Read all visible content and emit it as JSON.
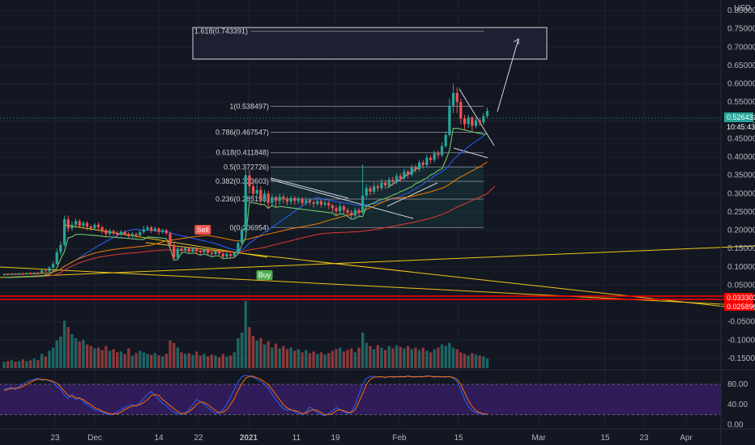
{
  "colors": {
    "background": "#131722",
    "grid": "#1e222d",
    "up": "#26a69a",
    "down": "#ef5350",
    "text": "#b2b5be",
    "fib": "#787b86",
    "signal_line": "#66bb6a",
    "ma_blue": "#2962ff",
    "ma_orange": "#f57c00",
    "ma_red": "#e53935",
    "trend_yellow": "#f0c419",
    "support_red": "#ff0000",
    "stoch_k": "#2962ff",
    "stoch_d": "#ff6d00",
    "stoch_band": "#3b1f6b"
  },
  "chart_data": {
    "type": "candlestick",
    "currency": "USD",
    "ylim": [
      -0.16,
      0.8
    ],
    "y_ticks": [
      "0.800000",
      "0.750000",
      "0.700000",
      "0.650000",
      "0.600000",
      "0.550000",
      "0.500000",
      "0.450000",
      "0.400000",
      "0.350000",
      "0.300000",
      "0.250000",
      "0.200000",
      "0.150000",
      "0.100000",
      "0.050000",
      "-0.050000",
      "-0.100000",
      "-0.150000"
    ],
    "x_ticks": [
      "23",
      "Dec",
      "14",
      "22",
      "2021",
      "11",
      "19",
      "Feb",
      "15",
      "Mar",
      "15",
      "23",
      "Apr"
    ],
    "last_price": "0.526431",
    "countdown": "10:45:43",
    "support_levels": [
      "0.033303",
      "0.025896"
    ],
    "fib_levels": [
      {
        "label": "1.618(0.743391)",
        "value": 0.743391
      },
      {
        "label": "1(0.538497)",
        "value": 0.538497
      },
      {
        "label": "0.786(0.467547)",
        "value": 0.467547
      },
      {
        "label": "0.618(0.411848)",
        "value": 0.411848
      },
      {
        "label": "0.5(0.372726)",
        "value": 0.372726
      },
      {
        "label": "0.382(0.333603)",
        "value": 0.333603
      },
      {
        "label": "0.236(0.285198)",
        "value": 0.285198
      },
      {
        "label": "0(0.206954)",
        "value": 0.206954
      }
    ],
    "signals": [
      {
        "label": "Sell"
      },
      {
        "label": "Buy"
      }
    ],
    "candles": [
      [
        0.078,
        0.08,
        0.075,
        0.081
      ],
      [
        0.08,
        0.079,
        0.077,
        0.082
      ],
      [
        0.079,
        0.081,
        0.077,
        0.083
      ],
      [
        0.081,
        0.08,
        0.078,
        0.083
      ],
      [
        0.08,
        0.082,
        0.078,
        0.084
      ],
      [
        0.082,
        0.081,
        0.079,
        0.085
      ],
      [
        0.081,
        0.083,
        0.079,
        0.085
      ],
      [
        0.083,
        0.082,
        0.08,
        0.086
      ],
      [
        0.082,
        0.084,
        0.08,
        0.086
      ],
      [
        0.084,
        0.083,
        0.081,
        0.087
      ],
      [
        0.083,
        0.09,
        0.081,
        0.093
      ],
      [
        0.09,
        0.088,
        0.085,
        0.094
      ],
      [
        0.088,
        0.098,
        0.086,
        0.102
      ],
      [
        0.098,
        0.108,
        0.095,
        0.115
      ],
      [
        0.108,
        0.14,
        0.105,
        0.15
      ],
      [
        0.14,
        0.16,
        0.132,
        0.17
      ],
      [
        0.16,
        0.23,
        0.155,
        0.24
      ],
      [
        0.23,
        0.205,
        0.195,
        0.24
      ],
      [
        0.205,
        0.215,
        0.198,
        0.225
      ],
      [
        0.215,
        0.225,
        0.205,
        0.232
      ],
      [
        0.225,
        0.212,
        0.205,
        0.23
      ],
      [
        0.212,
        0.22,
        0.205,
        0.226
      ],
      [
        0.22,
        0.21,
        0.2,
        0.225
      ],
      [
        0.21,
        0.205,
        0.198,
        0.215
      ],
      [
        0.205,
        0.215,
        0.2,
        0.22
      ],
      [
        0.215,
        0.208,
        0.2,
        0.222
      ],
      [
        0.208,
        0.2,
        0.19,
        0.212
      ],
      [
        0.2,
        0.19,
        0.182,
        0.205
      ],
      [
        0.19,
        0.198,
        0.185,
        0.204
      ],
      [
        0.198,
        0.192,
        0.185,
        0.202
      ],
      [
        0.192,
        0.188,
        0.18,
        0.198
      ],
      [
        0.188,
        0.196,
        0.184,
        0.2
      ],
      [
        0.196,
        0.19,
        0.185,
        0.2
      ],
      [
        0.19,
        0.184,
        0.178,
        0.195
      ],
      [
        0.184,
        0.19,
        0.18,
        0.196
      ],
      [
        0.19,
        0.186,
        0.18,
        0.194
      ],
      [
        0.186,
        0.195,
        0.182,
        0.2
      ],
      [
        0.195,
        0.202,
        0.19,
        0.212
      ],
      [
        0.202,
        0.208,
        0.198,
        0.214
      ],
      [
        0.208,
        0.198,
        0.192,
        0.212
      ],
      [
        0.198,
        0.205,
        0.195,
        0.21
      ],
      [
        0.205,
        0.195,
        0.188,
        0.208
      ],
      [
        0.195,
        0.2,
        0.19,
        0.204
      ],
      [
        0.2,
        0.192,
        0.186,
        0.204
      ],
      [
        0.192,
        0.16,
        0.15,
        0.195
      ],
      [
        0.16,
        0.125,
        0.118,
        0.165
      ],
      [
        0.125,
        0.15,
        0.12,
        0.158
      ],
      [
        0.15,
        0.145,
        0.138,
        0.155
      ],
      [
        0.145,
        0.152,
        0.14,
        0.156
      ],
      [
        0.152,
        0.142,
        0.136,
        0.155
      ],
      [
        0.142,
        0.15,
        0.138,
        0.154
      ],
      [
        0.15,
        0.143,
        0.136,
        0.154
      ],
      [
        0.143,
        0.14,
        0.132,
        0.148
      ],
      [
        0.14,
        0.147,
        0.135,
        0.15
      ],
      [
        0.147,
        0.138,
        0.132,
        0.15
      ],
      [
        0.138,
        0.135,
        0.128,
        0.142
      ],
      [
        0.135,
        0.142,
        0.13,
        0.146
      ],
      [
        0.142,
        0.136,
        0.13,
        0.146
      ],
      [
        0.136,
        0.128,
        0.122,
        0.14
      ],
      [
        0.128,
        0.135,
        0.124,
        0.14
      ],
      [
        0.135,
        0.13,
        0.124,
        0.138
      ],
      [
        0.13,
        0.138,
        0.126,
        0.142
      ],
      [
        0.138,
        0.165,
        0.135,
        0.172
      ],
      [
        0.165,
        0.2,
        0.16,
        0.21
      ],
      [
        0.2,
        0.35,
        0.195,
        0.365
      ],
      [
        0.35,
        0.32,
        0.3,
        0.365
      ],
      [
        0.32,
        0.3,
        0.285,
        0.335
      ],
      [
        0.3,
        0.31,
        0.29,
        0.325
      ],
      [
        0.31,
        0.285,
        0.27,
        0.32
      ],
      [
        0.285,
        0.3,
        0.275,
        0.31
      ],
      [
        0.3,
        0.275,
        0.26,
        0.308
      ],
      [
        0.275,
        0.29,
        0.268,
        0.298
      ],
      [
        0.29,
        0.28,
        0.262,
        0.295
      ],
      [
        0.28,
        0.292,
        0.27,
        0.3
      ],
      [
        0.292,
        0.285,
        0.274,
        0.298
      ],
      [
        0.285,
        0.278,
        0.268,
        0.292
      ],
      [
        0.278,
        0.288,
        0.27,
        0.295
      ],
      [
        0.288,
        0.28,
        0.27,
        0.293
      ],
      [
        0.28,
        0.285,
        0.272,
        0.292
      ],
      [
        0.285,
        0.274,
        0.266,
        0.29
      ],
      [
        0.274,
        0.282,
        0.268,
        0.29
      ],
      [
        0.282,
        0.276,
        0.268,
        0.288
      ],
      [
        0.276,
        0.272,
        0.262,
        0.282
      ],
      [
        0.272,
        0.28,
        0.266,
        0.286
      ],
      [
        0.28,
        0.27,
        0.262,
        0.285
      ],
      [
        0.27,
        0.275,
        0.264,
        0.282
      ],
      [
        0.275,
        0.268,
        0.258,
        0.28
      ],
      [
        0.268,
        0.26,
        0.25,
        0.272
      ],
      [
        0.26,
        0.252,
        0.24,
        0.266
      ],
      [
        0.252,
        0.265,
        0.245,
        0.275
      ],
      [
        0.265,
        0.255,
        0.245,
        0.27
      ],
      [
        0.255,
        0.248,
        0.238,
        0.262
      ],
      [
        0.248,
        0.24,
        0.23,
        0.255
      ],
      [
        0.24,
        0.255,
        0.232,
        0.262
      ],
      [
        0.255,
        0.248,
        0.238,
        0.26
      ],
      [
        0.248,
        0.295,
        0.245,
        0.38
      ],
      [
        0.295,
        0.315,
        0.288,
        0.325
      ],
      [
        0.315,
        0.305,
        0.295,
        0.322
      ],
      [
        0.305,
        0.32,
        0.298,
        0.33
      ],
      [
        0.32,
        0.315,
        0.305,
        0.328
      ],
      [
        0.315,
        0.33,
        0.308,
        0.34
      ],
      [
        0.33,
        0.322,
        0.312,
        0.338
      ],
      [
        0.322,
        0.338,
        0.316,
        0.345
      ],
      [
        0.338,
        0.332,
        0.322,
        0.346
      ],
      [
        0.332,
        0.348,
        0.326,
        0.356
      ],
      [
        0.348,
        0.342,
        0.332,
        0.355
      ],
      [
        0.342,
        0.36,
        0.336,
        0.368
      ],
      [
        0.36,
        0.352,
        0.342,
        0.366
      ],
      [
        0.352,
        0.372,
        0.346,
        0.38
      ],
      [
        0.372,
        0.366,
        0.356,
        0.38
      ],
      [
        0.366,
        0.385,
        0.36,
        0.392
      ],
      [
        0.385,
        0.378,
        0.368,
        0.392
      ],
      [
        0.378,
        0.398,
        0.372,
        0.406
      ],
      [
        0.398,
        0.392,
        0.382,
        0.405
      ],
      [
        0.392,
        0.41,
        0.386,
        0.418
      ],
      [
        0.41,
        0.405,
        0.395,
        0.418
      ],
      [
        0.405,
        0.43,
        0.4,
        0.44
      ],
      [
        0.43,
        0.46,
        0.425,
        0.47
      ],
      [
        0.46,
        0.54,
        0.455,
        0.56
      ],
      [
        0.54,
        0.575,
        0.52,
        0.6
      ],
      [
        0.575,
        0.55,
        0.52,
        0.59
      ],
      [
        0.55,
        0.505,
        0.49,
        0.56
      ],
      [
        0.505,
        0.49,
        0.475,
        0.515
      ],
      [
        0.49,
        0.508,
        0.48,
        0.515
      ],
      [
        0.508,
        0.485,
        0.47,
        0.512
      ],
      [
        0.485,
        0.5,
        0.478,
        0.51
      ],
      [
        0.5,
        0.494,
        0.485,
        0.508
      ],
      [
        0.494,
        0.512,
        0.488,
        0.52
      ],
      [
        0.512,
        0.526,
        0.505,
        0.535
      ]
    ],
    "volume": [
      0.8,
      0.9,
      1.0,
      0.8,
      0.9,
      1.1,
      0.9,
      1.0,
      1.2,
      1.0,
      1.8,
      1.5,
      2.2,
      2.6,
      3.5,
      4.0,
      6.0,
      5.2,
      4.3,
      3.8,
      3.4,
      3.6,
      3.0,
      2.8,
      2.5,
      2.6,
      2.3,
      2.8,
      2.2,
      2.4,
      2.0,
      2.1,
      1.8,
      2.5,
      1.6,
      1.9,
      2.2,
      2.0,
      1.8,
      1.7,
      1.9,
      1.6,
      1.5,
      1.8,
      3.5,
      3.2,
      2.6,
      2.0,
      1.8,
      1.9,
      1.7,
      2.1,
      1.6,
      1.8,
      1.5,
      1.7,
      1.6,
      1.4,
      1.8,
      1.5,
      1.6,
      2.0,
      3.8,
      4.5,
      8.5,
      5.2,
      4.1,
      3.5,
      3.8,
      3.0,
      3.4,
      2.6,
      3.1,
      2.5,
      2.8,
      2.4,
      2.6,
      2.2,
      2.4,
      2.0,
      2.3,
      1.9,
      2.1,
      1.8,
      2.0,
      1.7,
      1.9,
      2.2,
      2.4,
      2.6,
      2.1,
      2.3,
      2.5,
      2.0,
      2.6,
      4.5,
      3.2,
      2.8,
      2.4,
      2.9,
      2.6,
      2.3,
      2.8,
      2.5,
      2.9,
      2.7,
      2.5,
      2.8,
      2.4,
      2.6,
      2.3,
      2.6,
      2.2,
      2.0,
      2.4,
      2.6,
      3.0,
      2.8,
      3.2,
      2.6,
      2.4,
      2.0,
      1.8,
      1.6,
      1.9,
      1.7,
      1.6,
      1.5,
      1.2
    ],
    "stoch_ticks": [
      "80.00",
      "40.00",
      "0.00"
    ],
    "stoch_k": [
      70,
      72,
      74,
      70,
      76,
      80,
      85,
      88,
      90,
      92,
      88,
      90,
      87,
      84,
      75,
      70,
      58,
      52,
      60,
      50,
      54,
      45,
      40,
      35,
      30,
      28,
      25,
      22,
      20,
      22,
      26,
      30,
      34,
      38,
      40,
      36,
      44,
      52,
      60,
      66,
      58,
      50,
      42,
      38,
      30,
      25,
      22,
      20,
      24,
      30,
      40,
      50,
      46,
      40,
      34,
      28,
      22,
      24,
      30,
      40,
      55,
      70,
      85,
      95,
      98,
      96,
      94,
      90,
      86,
      80,
      72,
      60,
      50,
      40,
      32,
      28,
      30,
      26,
      22,
      20,
      26,
      35,
      30,
      24,
      20,
      18,
      22,
      28,
      34,
      30,
      26,
      22,
      26,
      40,
      60,
      80,
      92,
      95,
      96,
      94,
      95,
      93,
      96,
      94,
      95,
      96,
      94,
      97,
      95,
      94,
      96,
      95,
      97,
      96,
      94,
      96,
      95,
      94,
      96,
      92,
      86,
      70,
      50,
      36,
      28,
      24,
      22,
      20,
      22
    ],
    "stoch_d": [
      68,
      70,
      72,
      72,
      73,
      76,
      80,
      84,
      88,
      90,
      90,
      89,
      88,
      86,
      82,
      75,
      66,
      58,
      56,
      54,
      52,
      50,
      44,
      40,
      34,
      31,
      27,
      24,
      22,
      21,
      22,
      25,
      30,
      34,
      37,
      38,
      40,
      44,
      50,
      58,
      60,
      58,
      50,
      44,
      38,
      32,
      26,
      22,
      22,
      26,
      32,
      40,
      45,
      44,
      40,
      34,
      28,
      24,
      25,
      30,
      40,
      52,
      68,
      82,
      92,
      96,
      96,
      93,
      90,
      85,
      79,
      70,
      60,
      50,
      40,
      33,
      30,
      28,
      26,
      22,
      23,
      28,
      30,
      28,
      24,
      20,
      20,
      22,
      28,
      30,
      28,
      25,
      24,
      30,
      45,
      62,
      80,
      90,
      94,
      95,
      95,
      94,
      95,
      95,
      95,
      95,
      95,
      96,
      95,
      95,
      95,
      95,
      96,
      96,
      95,
      95,
      95,
      95,
      95,
      94,
      90,
      80,
      64,
      48,
      36,
      28,
      24,
      22,
      21
    ]
  }
}
